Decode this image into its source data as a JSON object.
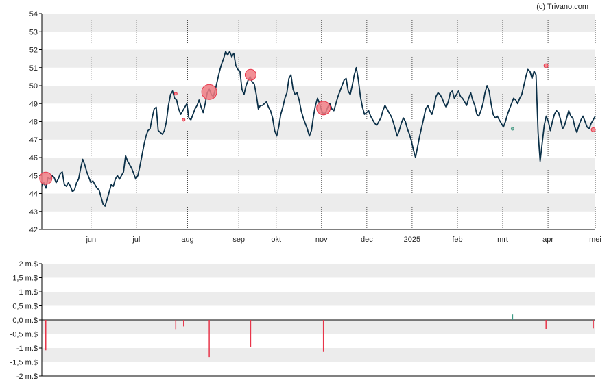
{
  "credit": "(c) Trivano.com",
  "colors": {
    "line": "#0b3048",
    "band": "#ececec",
    "axis": "#000000",
    "sell": "#e8354a",
    "sell_fill": "#f07c84",
    "buy": "#3d9a84",
    "buy_fill": "#8fb8a8"
  },
  "chart_data": [
    {
      "type": "line",
      "grid": true,
      "ylim": [
        42,
        54
      ],
      "yticks": [
        "42",
        "43",
        "44",
        "45",
        "46",
        "47",
        "48",
        "49",
        "50",
        "51",
        "52",
        "53",
        "54"
      ],
      "months": [
        {
          "label": "jun",
          "t": 25
        },
        {
          "label": "jul",
          "t": 48
        },
        {
          "label": "aug",
          "t": 74
        },
        {
          "label": "sep",
          "t": 100
        },
        {
          "label": "okt",
          "t": 119
        },
        {
          "label": "nov",
          "t": 142
        },
        {
          "label": "dec",
          "t": 165
        },
        {
          "label": "2025",
          "t": 188
        },
        {
          "label": "feb",
          "t": 211
        },
        {
          "label": "mrt",
          "t": 234
        },
        {
          "label": "apr",
          "t": 257
        },
        {
          "label": "mei",
          "t": 281
        }
      ],
      "tmax": 281,
      "series": [
        {
          "values": [
            44.4,
            44.6,
            44.3,
            44.9,
            44.8,
            45.0,
            44.9,
            44.6,
            44.8,
            45.1,
            45.2,
            44.5,
            44.4,
            44.6,
            44.4,
            44.1,
            44.2,
            44.6,
            44.8,
            45.4,
            45.9,
            45.6,
            45.2,
            44.9,
            44.6,
            44.7,
            44.5,
            44.3,
            44.2,
            43.8,
            43.4,
            43.3,
            43.7,
            44.1,
            44.5,
            44.4,
            44.8,
            45.0,
            44.8,
            45.0,
            45.2,
            46.1,
            45.8,
            45.6,
            45.4,
            45.1,
            44.8,
            45.0,
            45.5,
            46.1,
            46.7,
            47.2,
            47.5,
            47.6,
            48.2,
            48.7,
            48.8,
            47.5,
            47.4,
            47.3,
            47.5,
            48.0,
            48.9,
            49.5,
            49.7,
            49.3,
            49.2,
            48.7,
            48.4,
            48.6,
            48.8,
            49.0,
            48.2,
            48.1,
            48.4,
            48.7,
            48.9,
            49.2,
            48.8,
            48.5,
            49.0,
            49.6,
            49.8,
            49.5,
            49.4,
            49.8,
            50.3,
            50.8,
            51.2,
            51.5,
            51.9,
            51.7,
            51.9,
            51.6,
            51.8,
            51.1,
            50.9,
            50.8,
            49.8,
            49.5,
            50.0,
            50.3,
            50.5,
            50.2,
            50.1,
            49.5,
            48.7,
            48.9,
            48.9,
            49.0,
            49.1,
            48.8,
            48.6,
            48.2,
            47.5,
            47.2,
            47.7,
            48.4,
            48.8,
            49.3,
            49.6,
            50.4,
            50.6,
            49.8,
            49.5,
            49.6,
            49.2,
            48.6,
            48.2,
            47.9,
            47.6,
            47.2,
            47.5,
            48.3,
            48.9,
            49.3,
            49.0,
            48.6,
            48.4,
            48.5,
            48.8,
            49.0,
            48.7,
            48.6,
            49.0,
            49.4,
            49.7,
            50.0,
            50.3,
            50.4,
            49.7,
            49.5,
            50.0,
            50.6,
            51.0,
            50.3,
            49.4,
            48.8,
            48.4,
            48.5,
            48.6,
            48.3,
            48.1,
            47.9,
            47.8,
            48.0,
            48.2,
            48.6,
            48.9,
            48.7,
            48.5,
            48.3,
            48.0,
            47.6,
            47.2,
            47.5,
            47.9,
            48.2,
            48.0,
            47.6,
            47.3,
            46.9,
            46.4,
            46.0,
            46.6,
            47.2,
            47.7,
            48.2,
            48.7,
            48.9,
            48.6,
            48.4,
            48.8,
            49.4,
            49.6,
            49.5,
            49.3,
            49.0,
            48.8,
            49.1,
            49.6,
            49.7,
            49.3,
            49.5,
            49.7,
            49.4,
            49.3,
            49.1,
            48.9,
            49.3,
            49.6,
            49.2,
            48.9,
            48.4,
            48.3,
            48.6,
            49.0,
            49.6,
            50.0,
            49.7,
            49.0,
            48.4,
            48.2,
            48.3,
            48.1,
            47.9,
            47.7,
            48.0,
            48.4,
            48.7,
            49.0,
            49.3,
            49.2,
            49.0,
            49.3,
            49.5,
            50.0,
            50.5,
            50.9,
            50.8,
            50.4,
            50.8,
            50.6,
            47.4,
            45.8,
            46.8,
            47.8,
            48.3,
            48.0,
            47.5,
            48.0,
            48.4,
            48.6,
            48.5,
            48.1,
            47.6,
            47.8,
            48.2,
            48.6,
            48.3,
            48.2,
            47.7,
            47.4,
            47.8,
            48.1,
            48.3,
            48.0,
            47.7,
            47.6,
            47.9,
            48.1,
            48.3
          ]
        }
      ],
      "markers": [
        {
          "t": 2,
          "y": 44.85,
          "size": 9,
          "kind": "sell"
        },
        {
          "t": 68,
          "y": 49.55,
          "size": 2,
          "kind": "sell"
        },
        {
          "t": 72,
          "y": 48.1,
          "size": 2,
          "kind": "sell"
        },
        {
          "t": 85,
          "y": 49.65,
          "size": 11,
          "kind": "sell"
        },
        {
          "t": 106,
          "y": 50.6,
          "size": 8,
          "kind": "sell"
        },
        {
          "t": 143,
          "y": 48.75,
          "size": 10,
          "kind": "sell"
        },
        {
          "t": 239,
          "y": 47.6,
          "size": 2,
          "kind": "buy"
        },
        {
          "t": 256,
          "y": 51.1,
          "size": 3,
          "kind": "sell"
        },
        {
          "t": 280,
          "y": 47.55,
          "size": 3,
          "kind": "sell"
        }
      ]
    },
    {
      "type": "bar",
      "grid": true,
      "ylim": [
        -2,
        2
      ],
      "yticks": [
        {
          "v": 2,
          "label": "2 m.$"
        },
        {
          "v": 1.5,
          "label": "1,5 m.$"
        },
        {
          "v": 1,
          "label": "1 m.$"
        },
        {
          "v": 0.5,
          "label": "0,5 m.$"
        },
        {
          "v": 0,
          "label": "0,0 m.$"
        },
        {
          "v": -0.5,
          "label": "-0,5 m.$"
        },
        {
          "v": -1,
          "label": "-1 m.$"
        },
        {
          "v": -1.5,
          "label": "-1,5 m.$"
        },
        {
          "v": -2,
          "label": "-2 m.$"
        }
      ],
      "bars": [
        {
          "t": 2,
          "value": -1.08
        },
        {
          "t": 68,
          "value": -0.35
        },
        {
          "t": 72,
          "value": -0.23
        },
        {
          "t": 85,
          "value": -1.32
        },
        {
          "t": 106,
          "value": -0.96
        },
        {
          "t": 143,
          "value": -1.14
        },
        {
          "t": 239,
          "value": 0.19
        },
        {
          "t": 256,
          "value": -0.32
        },
        {
          "t": 280,
          "value": -0.3
        }
      ]
    }
  ]
}
